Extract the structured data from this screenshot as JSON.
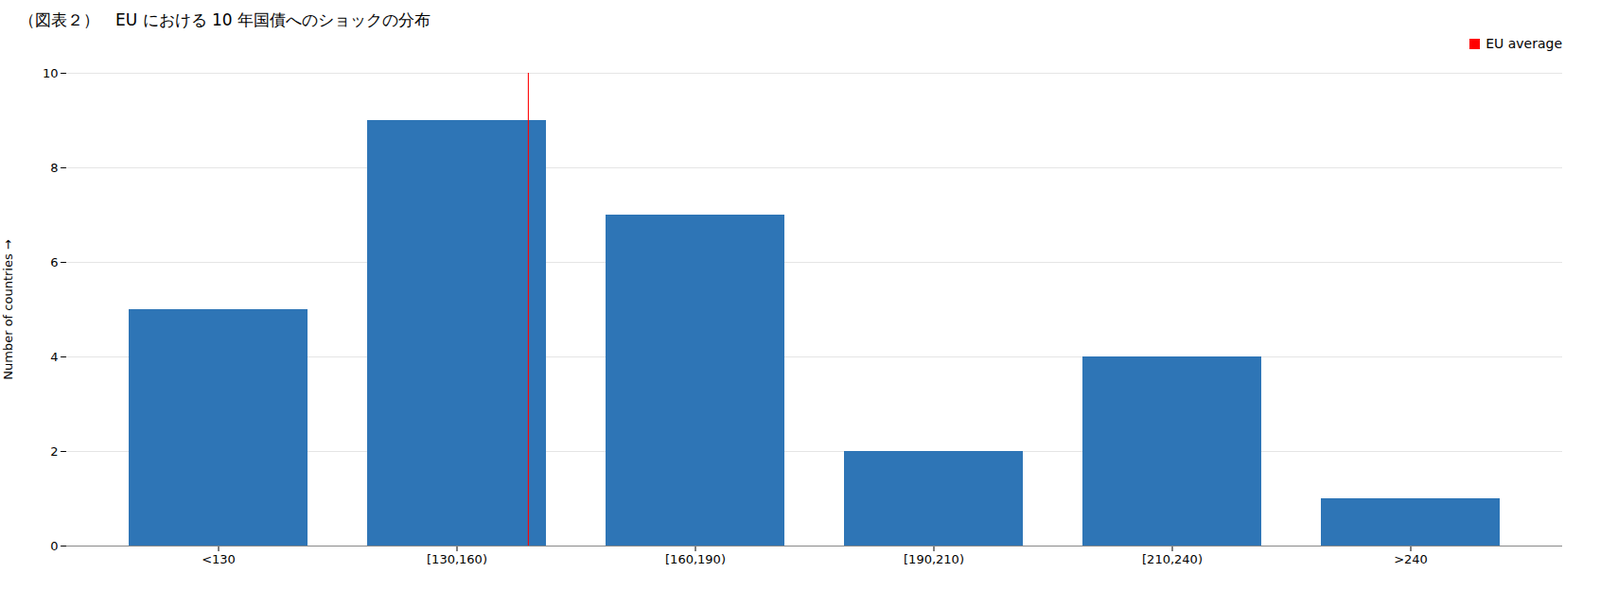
{
  "chart_data": {
    "type": "bar",
    "title": "（図表２）　EU における 10 年国債へのショックの分布",
    "categories": [
      "<130",
      "[130,160)",
      "[160,190)",
      "[190,210)",
      "[210,240)",
      ">240"
    ],
    "values": [
      5,
      9,
      7,
      2,
      4,
      1
    ],
    "color": "#2E75B6",
    "ylabel": "Number of countries",
    "ylim": [
      0,
      10
    ],
    "yticks": [
      0,
      2,
      4,
      6,
      8,
      10
    ],
    "grid": true,
    "legend": "upper right",
    "annotations": [
      {
        "type": "vline",
        "category": "[130,160)",
        "label": "EU average",
        "color": "#FF0000"
      }
    ]
  }
}
